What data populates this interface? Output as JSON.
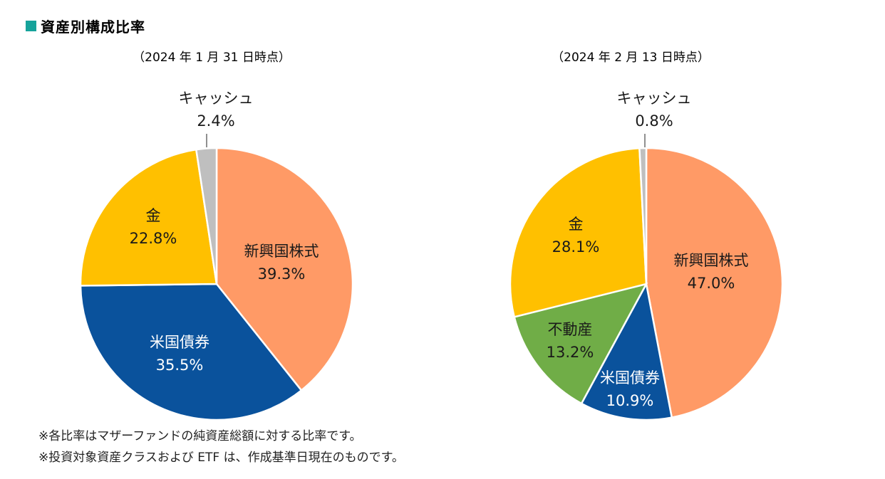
{
  "header": {
    "title": "資産別構成比率"
  },
  "chart_data": [
    {
      "type": "pie",
      "title": "（2024 年 1 月 31 日時点）",
      "slices": [
        {
          "name": "新興国株式",
          "value": 39.3,
          "label": "39.3%",
          "color": "#ff9a66"
        },
        {
          "name": "米国債券",
          "value": 35.5,
          "label": "35.5%",
          "color": "#0a529c"
        },
        {
          "name": "金",
          "value": 22.8,
          "label": "22.8%",
          "color": "#ffc000"
        },
        {
          "name": "キャッシュ",
          "value": 2.4,
          "label": "2.4%",
          "color": "#bfbfbf"
        }
      ]
    },
    {
      "type": "pie",
      "title": "（2024 年 2 月 13 日時点）",
      "slices": [
        {
          "name": "新興国株式",
          "value": 47.0,
          "label": "47.0%",
          "color": "#ff9a66"
        },
        {
          "name": "米国債券",
          "value": 10.9,
          "label": "10.9%",
          "color": "#0a529c"
        },
        {
          "name": "不動産",
          "value": 13.2,
          "label": "13.2%",
          "color": "#70ad47"
        },
        {
          "name": "金",
          "value": 28.1,
          "label": "28.1%",
          "color": "#ffc000"
        },
        {
          "name": "キャッシュ",
          "value": 0.8,
          "label": "0.8%",
          "color": "#bfbfbf"
        }
      ]
    }
  ],
  "notes": [
    "※各比率はマザーファンドの純資産総額に対する比率です。",
    "※投資対象資産クラスおよび ETF は、作成基準日現在のものです。"
  ]
}
